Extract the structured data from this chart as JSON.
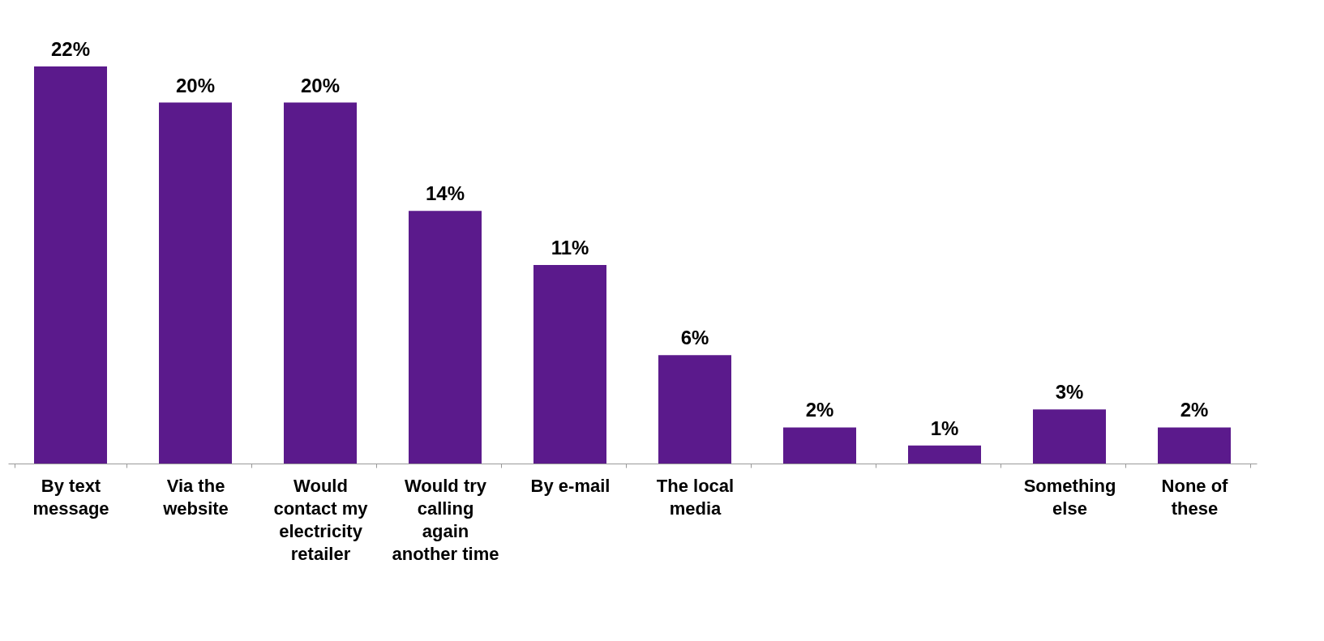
{
  "chart_data": {
    "type": "bar",
    "categories": [
      "By text message",
      "Via the website",
      "Would contact my electricity retailer",
      "Would try calling again another time",
      "By e-mail",
      "The local media",
      null,
      null,
      "Something else",
      "None of these"
    ],
    "values": [
      22,
      20,
      20,
      14,
      11,
      6,
      2,
      1,
      3,
      2
    ],
    "value_labels": [
      "22%",
      "20%",
      "20%",
      "14%",
      "11%",
      "6%",
      "2%",
      "1%",
      "3%",
      "2%"
    ],
    "color": "#5b1a8c",
    "grid": false
  }
}
